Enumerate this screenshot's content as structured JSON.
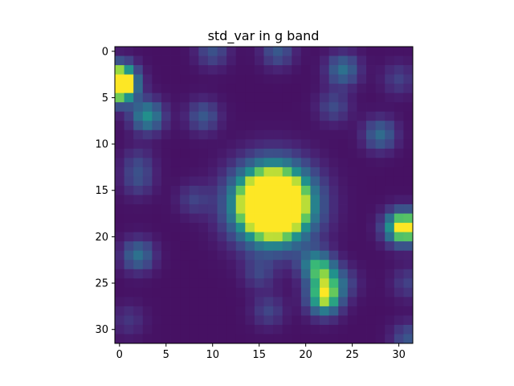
{
  "chart_data": {
    "type": "heatmap",
    "title": "std_var in g band",
    "xlabel": "",
    "ylabel": "",
    "rows": 32,
    "cols": 32,
    "xlim": [
      -0.5,
      31.5
    ],
    "ylim": [
      31.5,
      -0.5
    ],
    "y_axis_inverted": true,
    "grid": false,
    "colormap": "viridis",
    "x_ticks": [
      0,
      5,
      10,
      15,
      20,
      25,
      30
    ],
    "y_ticks": [
      0,
      5,
      10,
      15,
      20,
      25,
      30
    ],
    "x_tick_labels": [
      "0",
      "5",
      "10",
      "15",
      "20",
      "25",
      "30"
    ],
    "y_tick_labels": [
      "0",
      "5",
      "10",
      "15",
      "20",
      "25",
      "30"
    ],
    "background_level": 0.06,
    "hotspots": [
      {
        "row": 3,
        "col": 0,
        "peak": 1.0
      },
      {
        "row": 4,
        "col": 0,
        "peak": 0.85
      },
      {
        "row": 7,
        "col": 3,
        "peak": 0.62
      },
      {
        "row": 7,
        "col": 9,
        "peak": 0.32
      },
      {
        "row": 0,
        "col": 10,
        "peak": 0.28
      },
      {
        "row": 0,
        "col": 17,
        "peak": 0.32
      },
      {
        "row": 2,
        "col": 24,
        "peak": 0.45
      },
      {
        "row": 3,
        "col": 30,
        "peak": 0.2
      },
      {
        "row": 6,
        "col": 23,
        "peak": 0.25
      },
      {
        "row": 9,
        "col": 28,
        "peak": 0.42
      },
      {
        "row": 12,
        "col": 2,
        "peak": 0.18
      },
      {
        "row": 14,
        "col": 2,
        "peak": 0.22
      },
      {
        "row": 16,
        "col": 8,
        "peak": 0.2
      },
      {
        "row": 16,
        "col": 16,
        "peak": 0.62
      },
      {
        "row": 17,
        "col": 16,
        "peak": 0.62
      },
      {
        "row": 16,
        "col": 17,
        "peak": 0.6
      },
      {
        "row": 17,
        "col": 17,
        "peak": 0.6
      },
      {
        "row": 19,
        "col": 30,
        "peak": 0.65
      },
      {
        "row": 19,
        "col": 31,
        "peak": 0.7
      },
      {
        "row": 22,
        "col": 2,
        "peak": 0.45
      },
      {
        "row": 24,
        "col": 15,
        "peak": 0.2
      },
      {
        "row": 23,
        "col": 21,
        "peak": 0.5
      },
      {
        "row": 24,
        "col": 22,
        "peak": 0.45
      },
      {
        "row": 26,
        "col": 22,
        "peak": 0.55
      },
      {
        "row": 27,
        "col": 22,
        "peak": 0.52
      },
      {
        "row": 25,
        "col": 24,
        "peak": 0.22
      },
      {
        "row": 28,
        "col": 16,
        "peak": 0.22
      },
      {
        "row": 29,
        "col": 1,
        "peak": 0.15
      },
      {
        "row": 31,
        "col": 31,
        "peak": 0.3
      },
      {
        "row": 25,
        "col": 31,
        "peak": 0.2
      }
    ]
  }
}
